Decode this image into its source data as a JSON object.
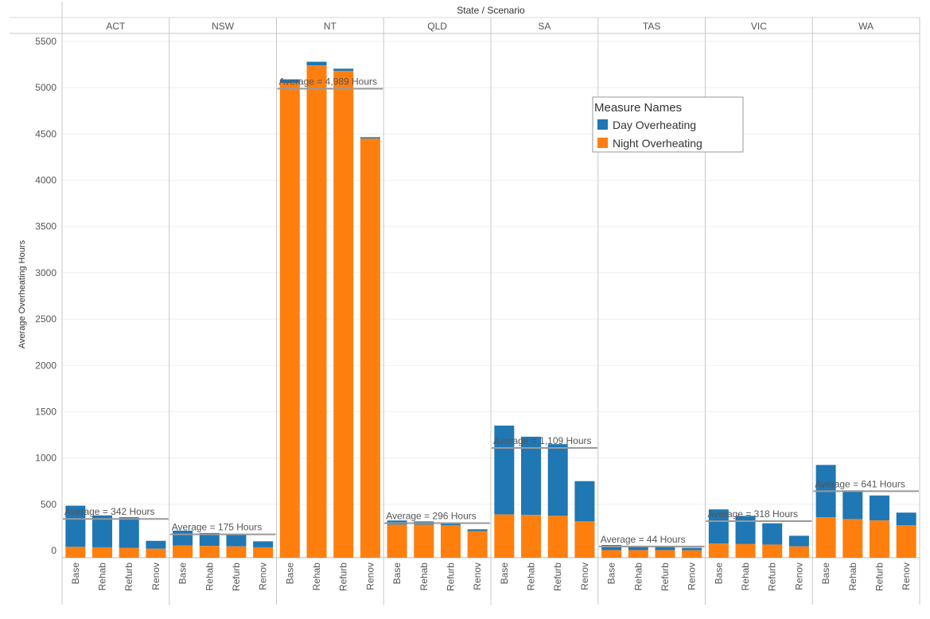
{
  "chart_data": {
    "type": "bar",
    "stacked": true,
    "title": "State / Scenario",
    "ylabel": "Average Overheating Hours",
    "ylim": [
      0,
      5500
    ],
    "yticks": [
      0,
      500,
      1000,
      1500,
      2000,
      2500,
      3000,
      3500,
      4000,
      4500,
      5000,
      5500
    ],
    "grid": true,
    "legend": {
      "title": "Measure Names",
      "placement": "top-right",
      "entries": [
        {
          "name": "Day Overheating",
          "color": "#1f77b4"
        },
        {
          "name": "Night Overheating",
          "color": "#ff7f0e"
        }
      ]
    },
    "scenarios": [
      "Base",
      "Rehab",
      "Refurb",
      "Renov"
    ],
    "panels": [
      {
        "state": "ACT",
        "average_label": "Average = 342 Hours",
        "average": 342,
        "night": [
          40,
          35,
          30,
          20
        ],
        "day": [
          445,
          345,
          330,
          85
        ]
      },
      {
        "state": "NSW",
        "average_label": "Average = 175 Hours",
        "average": 175,
        "night": [
          55,
          50,
          45,
          35
        ],
        "day": [
          160,
          140,
          130,
          65
        ]
      },
      {
        "state": "NT",
        "average_label": "Average = 4,989 Hours",
        "average": 4989,
        "night": [
          5050,
          5240,
          5180,
          4450
        ],
        "day": [
          40,
          40,
          25,
          15
        ]
      },
      {
        "state": "QLD",
        "average_label": "Average = 296 Hours",
        "average": 296,
        "night": [
          280,
          280,
          275,
          210
        ],
        "day": [
          45,
          35,
          30,
          20
        ]
      },
      {
        "state": "SA",
        "average_label": "Average = 1,109 Hours",
        "average": 1109,
        "night": [
          390,
          385,
          375,
          315
        ],
        "day": [
          960,
          845,
          775,
          435
        ]
      },
      {
        "state": "TAS",
        "average_label": "Average = 44 Hours",
        "average": 44,
        "night": [
          5,
          5,
          5,
          3
        ],
        "day": [
          55,
          45,
          45,
          27
        ]
      },
      {
        "state": "VIC",
        "average_label": "Average = 318 Hours",
        "average": 318,
        "night": [
          75,
          70,
          65,
          45
        ],
        "day": [
          370,
          305,
          230,
          115
        ]
      },
      {
        "state": "WA",
        "average_label": "Average = 641 Hours",
        "average": 641,
        "night": [
          360,
          340,
          325,
          275
        ],
        "day": [
          565,
          310,
          270,
          135
        ]
      }
    ]
  }
}
